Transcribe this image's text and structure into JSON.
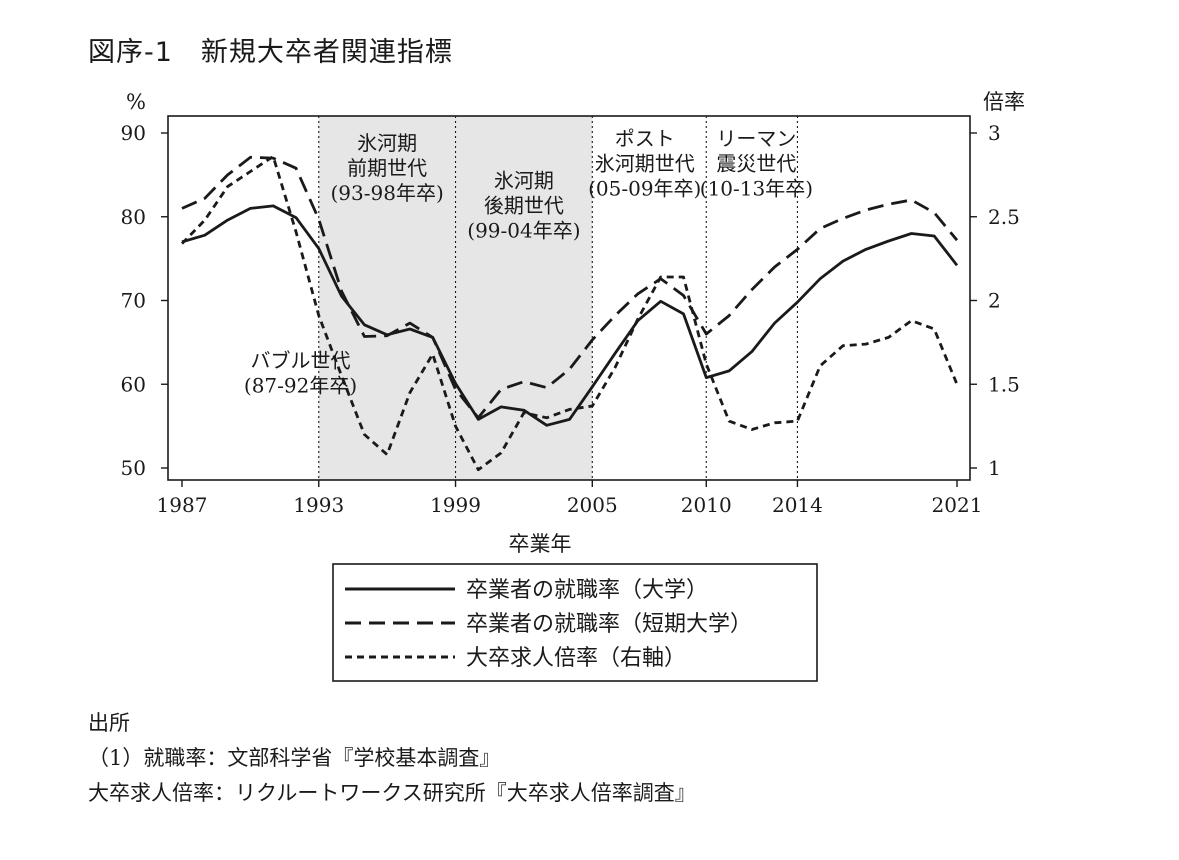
{
  "title": "図序-1　新規大卒者関連指標",
  "chart_data": {
    "type": "line",
    "xlabel": "卒業年",
    "ylabel_left": "%",
    "ylabel_right": "倍率",
    "xlim": [
      1987,
      2021
    ],
    "ylim_left": [
      50,
      90
    ],
    "ylim_right": [
      1,
      3
    ],
    "x_ticks": [
      1987,
      1993,
      1999,
      2005,
      2010,
      2014,
      2021
    ],
    "y_ticks_left": [
      50,
      60,
      70,
      80,
      90
    ],
    "y_ticks_right": [
      "1",
      "1.5",
      "2",
      "2.5",
      "3"
    ],
    "shaded_periods": [
      [
        1993,
        1999
      ],
      [
        1999,
        2005
      ]
    ],
    "divider_years": [
      1993,
      1999,
      2005,
      2010,
      2014
    ],
    "period_labels": [
      {
        "lines": [
          "バブル世代",
          "(87-92年卒)"
        ],
        "at": [
          1992.2,
          62
        ]
      },
      {
        "lines": [
          "氷河期",
          "前期世代",
          "(93-98年卒)"
        ],
        "at": [
          1996,
          88
        ]
      },
      {
        "lines": [
          "氷河期",
          "後期世代",
          "(99-04年卒)"
        ],
        "at": [
          2002,
          83.5
        ]
      },
      {
        "lines": [
          "ポスト",
          "氷河期世代",
          "(05-09年卒)"
        ],
        "at": [
          2007.3,
          88.5
        ]
      },
      {
        "lines": [
          "リーマン",
          "震災世代",
          "(10-13年卒)"
        ],
        "at": [
          2012.2,
          88.5
        ]
      }
    ],
    "series": [
      {
        "name": "卒業者の就職率（大学）",
        "axis": "left",
        "style": "solid",
        "x": [
          1987,
          1988,
          1989,
          1990,
          1991,
          1992,
          1993,
          1994,
          1995,
          1996,
          1997,
          1998,
          1999,
          2000,
          2001,
          2002,
          2003,
          2004,
          2005,
          2006,
          2007,
          2008,
          2009,
          2010,
          2011,
          2012,
          2013,
          2014,
          2015,
          2016,
          2017,
          2018,
          2019,
          2020,
          2021
        ],
        "values": [
          77.0,
          77.8,
          79.6,
          81.0,
          81.3,
          79.9,
          76.2,
          70.5,
          67.1,
          65.9,
          66.6,
          65.6,
          60.1,
          55.8,
          57.3,
          56.9,
          55.1,
          55.8,
          59.7,
          63.7,
          67.6,
          69.9,
          68.4,
          60.8,
          61.6,
          63.9,
          67.3,
          69.8,
          72.6,
          74.7,
          76.1,
          77.1,
          78.0,
          77.7,
          74.2
        ]
      },
      {
        "name": "卒業者の就職率（短期大学）",
        "axis": "left",
        "style": "dashed",
        "x": [
          1987,
          1988,
          1989,
          1990,
          1991,
          1992,
          1993,
          1994,
          1995,
          1996,
          1997,
          1998,
          1999,
          2000,
          2001,
          2002,
          2003,
          2004,
          2005,
          2006,
          2007,
          2008,
          2009,
          2010,
          2011,
          2012,
          2013,
          2014,
          2015,
          2016,
          2017,
          2018,
          2019,
          2020,
          2021
        ],
        "values": [
          81.0,
          82.2,
          85.0,
          87.1,
          87.0,
          85.8,
          79.7,
          71.1,
          65.7,
          65.8,
          67.3,
          65.6,
          59.4,
          56.0,
          59.4,
          60.3,
          59.6,
          61.8,
          65.3,
          68.2,
          70.8,
          72.6,
          70.6,
          66.0,
          68.2,
          71.3,
          74.0,
          76.1,
          78.6,
          79.8,
          80.8,
          81.5,
          82.0,
          80.5,
          77.2
        ]
      },
      {
        "name": "大卒求人倍率（右軸）",
        "axis": "right",
        "style": "dotted",
        "x": [
          1987,
          1988,
          1989,
          1990,
          1991,
          1992,
          1993,
          1994,
          1995,
          1996,
          1997,
          1998,
          1999,
          2000,
          2001,
          2002,
          2003,
          2004,
          2005,
          2006,
          2007,
          2008,
          2009,
          2010,
          2011,
          2012,
          2013,
          2014,
          2015,
          2016,
          2017,
          2018,
          2019,
          2020,
          2021
        ],
        "values": [
          2.34,
          2.48,
          2.68,
          2.77,
          2.86,
          2.41,
          1.91,
          1.55,
          1.2,
          1.08,
          1.45,
          1.68,
          1.25,
          0.99,
          1.09,
          1.33,
          1.3,
          1.35,
          1.37,
          1.6,
          1.89,
          2.14,
          2.14,
          1.62,
          1.28,
          1.23,
          1.27,
          1.28,
          1.61,
          1.73,
          1.74,
          1.78,
          1.88,
          1.83,
          1.5
        ]
      }
    ]
  },
  "source": {
    "header": "出所",
    "line1": "（1）就職率：文部科学省『学校基本調査』",
    "line2": "大卒求人倍率：リクルートワークス研究所『大卒求人倍率調査』"
  }
}
